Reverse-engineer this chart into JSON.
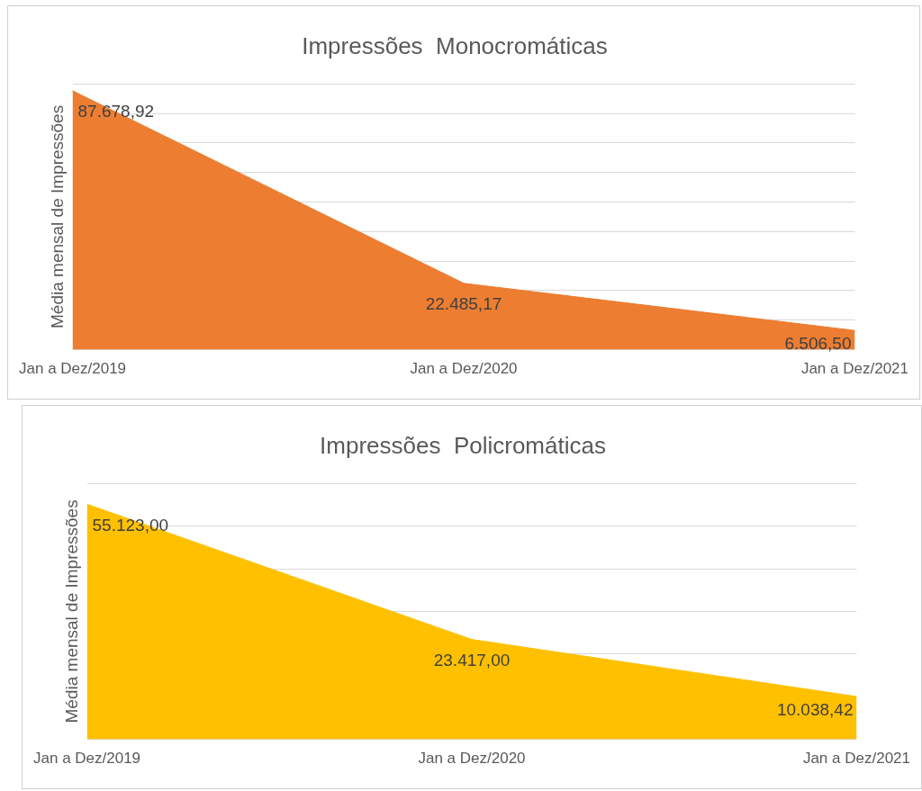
{
  "chart_data": [
    {
      "type": "area",
      "title": "Impressões  Monocromáticas",
      "ylabel": "Média mensal de Impressões",
      "categories": [
        "Jan a Dez/2019",
        "Jan a Dez/2020",
        "Jan a Dez/2021"
      ],
      "series": [
        {
          "color": "#ed7d31",
          "values": [
            87678.92,
            22485.17,
            6506.5
          ],
          "value_labels": [
            "87.678,92",
            "22.485,17",
            "6.506,50"
          ]
        }
      ],
      "grid": "y",
      "tick_labels": "x",
      "legend": false
    },
    {
      "type": "area",
      "title": "Impressões  Policromáticas",
      "ylabel": "Média mensal de Impressões",
      "categories": [
        "Jan a Dez/2019",
        "Jan a Dez/2020",
        "Jan a Dez/2021"
      ],
      "series": [
        {
          "color": "#ffc000",
          "values": [
            55123.0,
            23417.0,
            10038.42
          ],
          "value_labels": [
            "55.123,00",
            "23.417,00",
            "10.038,42"
          ]
        }
      ],
      "grid": "y",
      "tick_labels": "x",
      "legend": false
    }
  ]
}
